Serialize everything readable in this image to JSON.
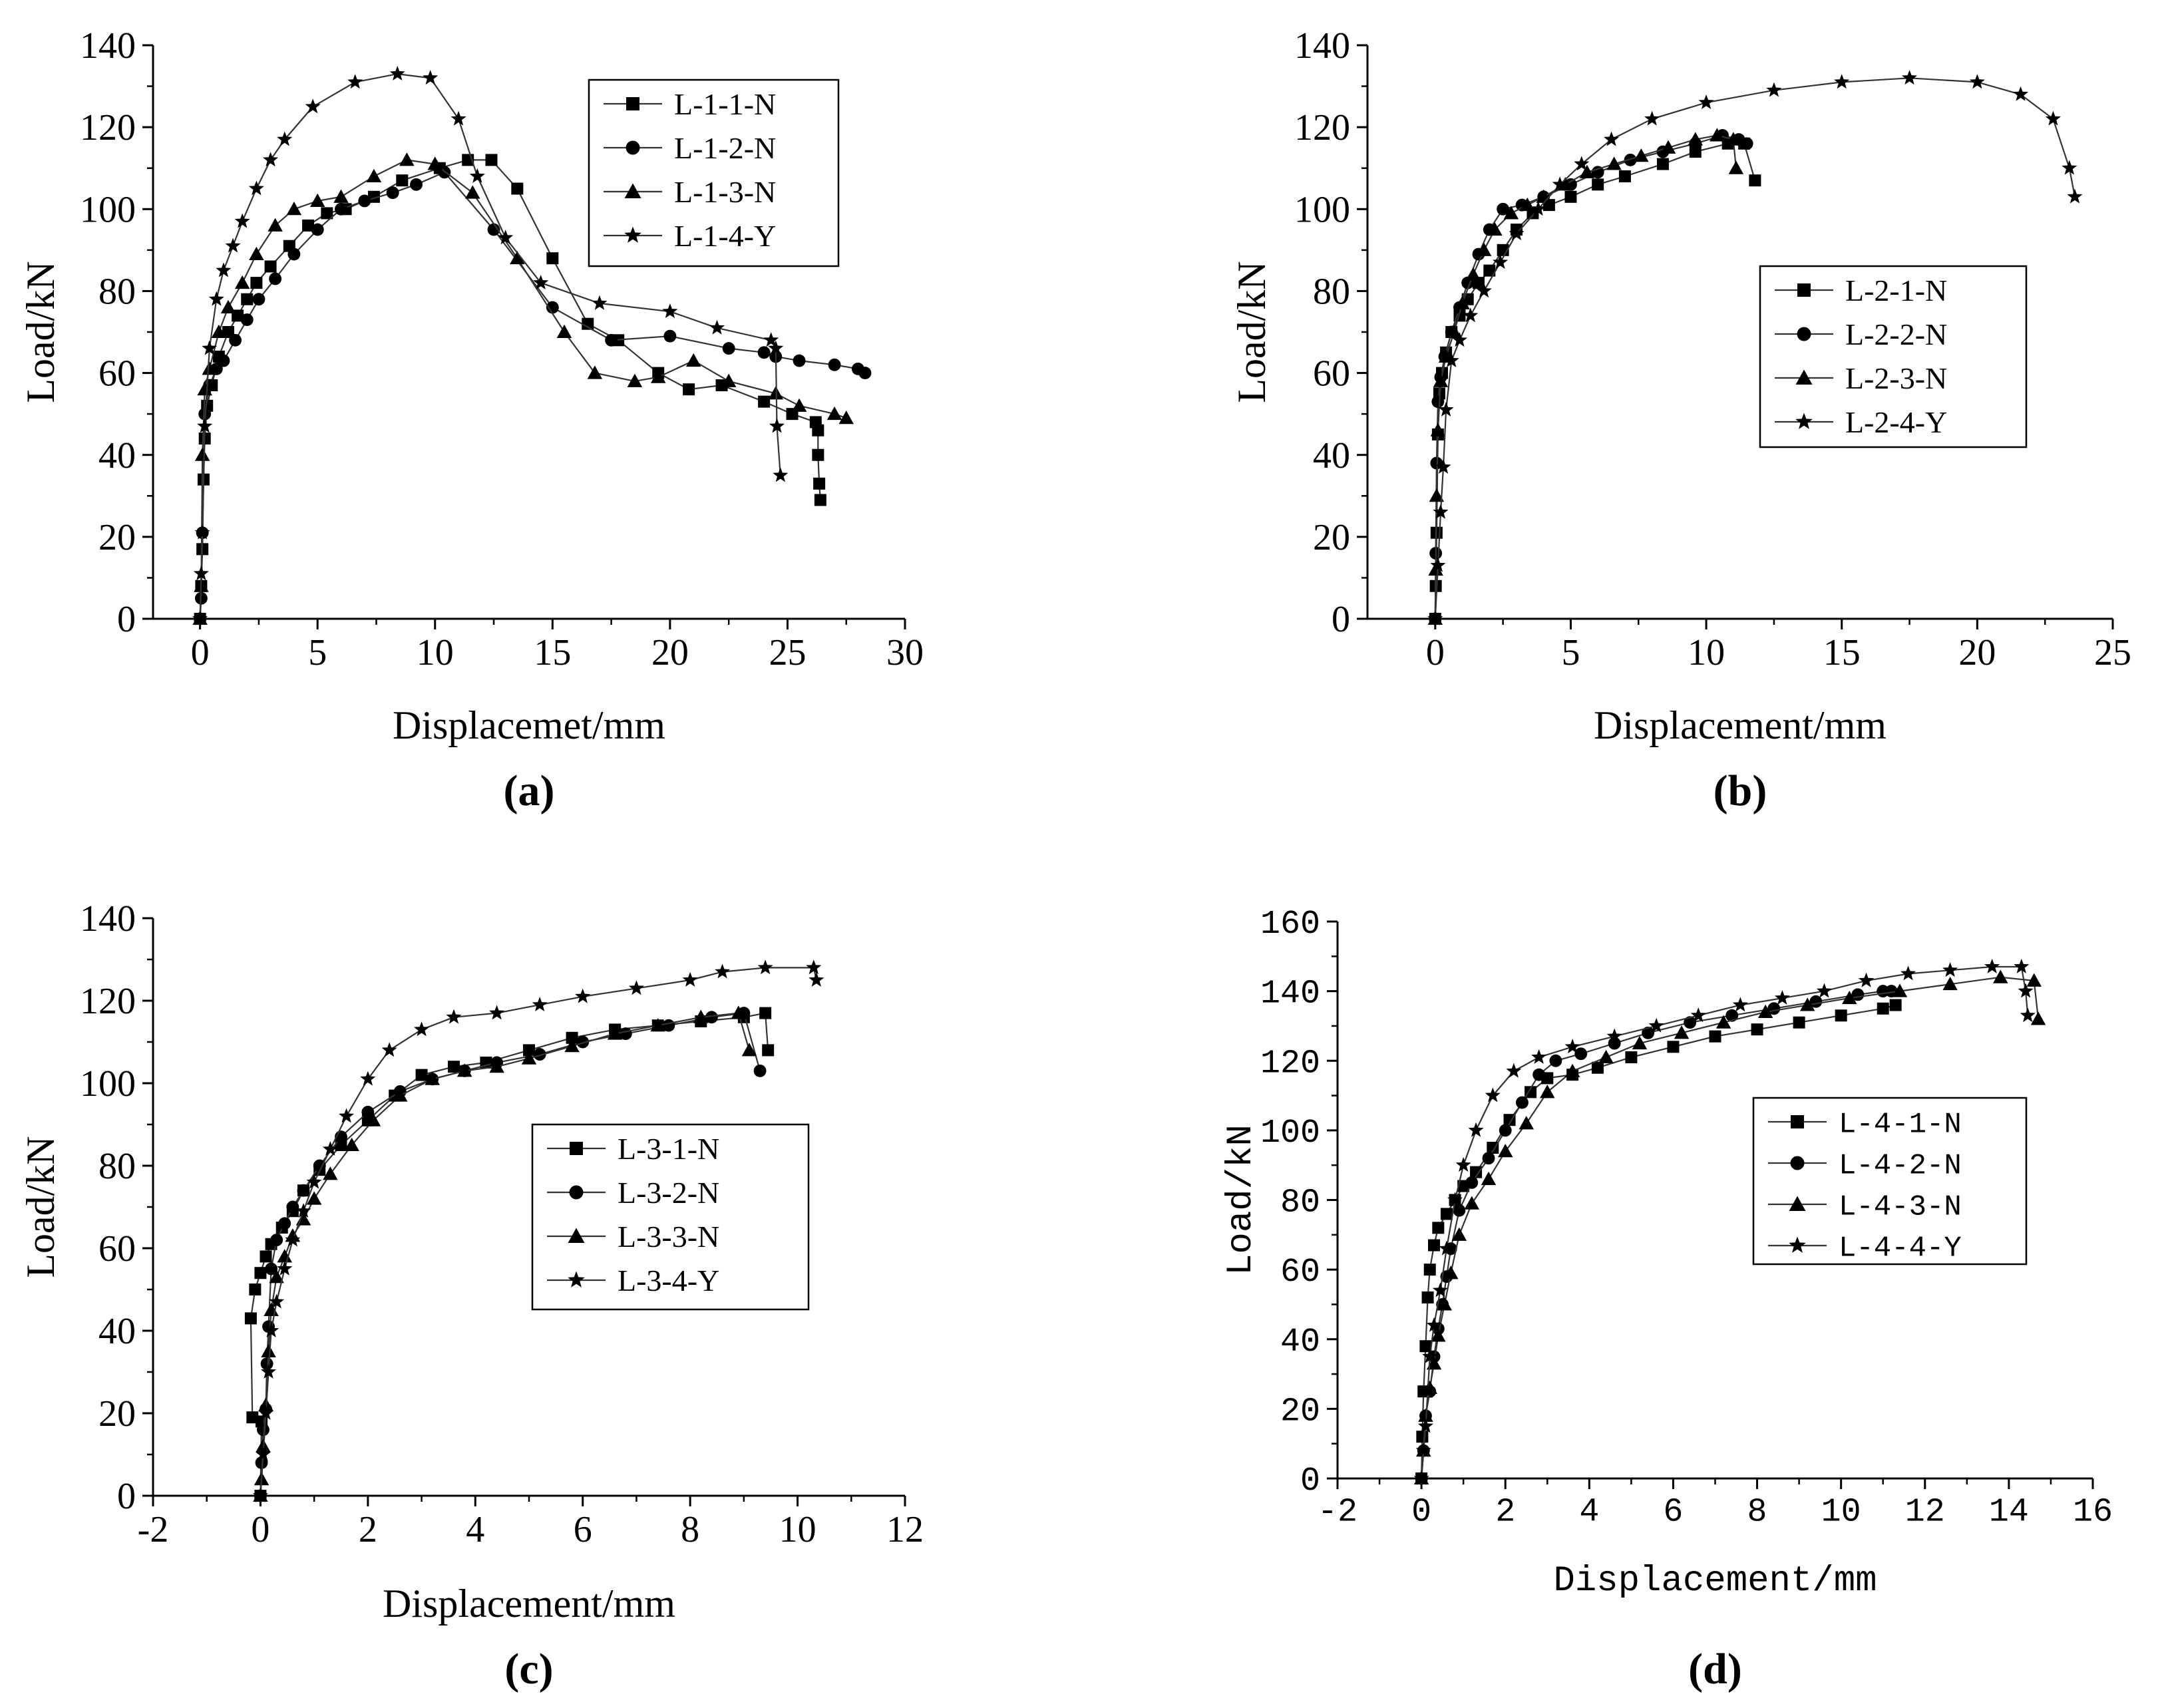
{
  "charts": [
    {
      "id": "a",
      "panel_label": "(a)",
      "type": "line",
      "xlabel": "Displacemet/mm",
      "ylabel": "Load/kN",
      "xlim": [
        -2,
        30
      ],
      "ylim": [
        0,
        140
      ],
      "xticks": [
        "0",
        "5",
        "10",
        "15",
        "20",
        "25",
        "30"
      ],
      "yticks": [
        "0",
        "20",
        "40",
        "60",
        "80",
        "100",
        "120",
        "140"
      ],
      "legend_position": "top-right",
      "series": [
        {
          "name": "L-1-1-N",
          "marker": "square",
          "x": [
            0,
            0.05,
            0.1,
            0.15,
            0.2,
            0.3,
            0.5,
            0.8,
            1.2,
            1.6,
            2.0,
            2.4,
            3.0,
            3.8,
            4.6,
            5.4,
            6.2,
            7.4,
            8.6,
            10.2,
            11.4,
            12.4,
            13.5,
            15.0,
            16.5,
            17.8,
            19.5,
            20.8,
            22.2,
            24.0,
            25.2,
            26.2,
            26.3,
            26.3,
            26.35,
            26.4
          ],
          "y": [
            0,
            8,
            17,
            34,
            44,
            52,
            57,
            64,
            70,
            74,
            78,
            82,
            86,
            91,
            96,
            99,
            100,
            103,
            107,
            110,
            112,
            112,
            105,
            88,
            72,
            68,
            60,
            56,
            57,
            53,
            50,
            48,
            46,
            40,
            33,
            29
          ]
        },
        {
          "name": "L-1-2-N",
          "marker": "circle",
          "x": [
            0,
            0.05,
            0.1,
            0.2,
            0.4,
            0.7,
            1.0,
            1.5,
            2.0,
            2.5,
            3.2,
            4.0,
            5.0,
            6.0,
            7.0,
            8.2,
            9.2,
            10.4,
            12.5,
            15.0,
            17.5,
            20.0,
            22.5,
            24.0,
            24.5,
            25.5,
            27.0,
            28.0,
            28.3
          ],
          "y": [
            0,
            5,
            21,
            50,
            57,
            61,
            63,
            68,
            73,
            78,
            83,
            89,
            95,
            100,
            102,
            104,
            106,
            109,
            95,
            76,
            68,
            69,
            66,
            65,
            64,
            63,
            62,
            61,
            60
          ]
        },
        {
          "name": "L-1-3-N",
          "marker": "triangle",
          "x": [
            0,
            0.05,
            0.1,
            0.2,
            0.4,
            0.8,
            1.2,
            1.8,
            2.4,
            3.2,
            4.0,
            5.0,
            6.0,
            7.4,
            8.8,
            10.0,
            11.6,
            13.5,
            15.5,
            16.8,
            18.5,
            19.5,
            21.0,
            22.5,
            24.5,
            25.5,
            27.0,
            27.5
          ],
          "y": [
            0,
            8,
            40,
            56,
            61,
            70,
            76,
            82,
            89,
            96,
            100,
            102,
            103,
            108,
            112,
            111,
            104,
            88,
            70,
            60,
            58,
            59,
            63,
            58,
            55,
            52,
            50,
            49
          ]
        },
        {
          "name": "L-1-4-Y",
          "marker": "star",
          "x": [
            0,
            0.05,
            0.1,
            0.2,
            0.4,
            0.7,
            1.0,
            1.4,
            1.8,
            2.4,
            3.0,
            3.6,
            4.8,
            6.6,
            8.4,
            9.8,
            11.0,
            11.8,
            13.0,
            14.5,
            17.0,
            20.0,
            22.0,
            24.3,
            24.5,
            24.55,
            24.7
          ],
          "y": [
            0,
            11,
            21,
            47,
            66,
            78,
            85,
            91,
            97,
            105,
            112,
            117,
            125,
            131,
            133,
            132,
            122,
            108,
            93,
            82,
            77,
            75,
            71,
            68,
            66,
            47,
            35
          ]
        }
      ]
    },
    {
      "id": "b",
      "panel_label": "(b)",
      "type": "line",
      "xlabel": "Displacement/mm",
      "ylabel": "Load/kN",
      "xlim": [
        -2.5,
        25
      ],
      "ylim": [
        0,
        140
      ],
      "xticks": [
        "0",
        "5",
        "10",
        "15",
        "20",
        "25"
      ],
      "yticks": [
        "0",
        "20",
        "40",
        "60",
        "80",
        "100",
        "120",
        "140"
      ],
      "legend_position": "center-right",
      "series": [
        {
          "name": "L-2-1-N",
          "marker": "square",
          "x": [
            0,
            0.02,
            0.05,
            0.1,
            0.15,
            0.25,
            0.4,
            0.6,
            0.9,
            1.2,
            1.6,
            2.0,
            2.5,
            3.0,
            3.6,
            4.2,
            5.0,
            6.0,
            7.0,
            8.4,
            9.6,
            10.8,
            11.4,
            11.8
          ],
          "y": [
            0,
            8,
            21,
            45,
            55,
            60,
            65,
            70,
            74,
            78,
            82,
            85,
            90,
            95,
            99,
            101,
            103,
            106,
            108,
            111,
            114,
            116,
            116,
            107
          ]
        },
        {
          "name": "L-2-2-N",
          "marker": "circle",
          "x": [
            0,
            0.02,
            0.05,
            0.1,
            0.2,
            0.35,
            0.6,
            0.9,
            1.2,
            1.6,
            2.0,
            2.5,
            3.2,
            4.0,
            5.0,
            6.0,
            7.2,
            8.4,
            9.6,
            10.6,
            11.2,
            11.5
          ],
          "y": [
            0,
            16,
            38,
            53,
            59,
            64,
            70,
            76,
            82,
            89,
            95,
            100,
            101,
            103,
            106,
            109,
            112,
            114,
            116,
            118,
            117,
            116
          ]
        },
        {
          "name": "L-2-3-N",
          "marker": "triangle",
          "x": [
            0,
            0.02,
            0.05,
            0.1,
            0.2,
            0.4,
            0.7,
            1.0,
            1.4,
            1.8,
            2.2,
            2.8,
            3.4,
            4.0,
            4.8,
            5.6,
            6.6,
            7.6,
            8.6,
            9.6,
            10.4,
            11.0,
            11.1
          ],
          "y": [
            0,
            12,
            30,
            46,
            58,
            64,
            70,
            77,
            84,
            90,
            95,
            99,
            101,
            103,
            106,
            109,
            111,
            113,
            115,
            117,
            118,
            117,
            110
          ]
        },
        {
          "name": "L-2-4-Y",
          "marker": "star",
          "x": [
            0,
            0.1,
            0.2,
            0.3,
            0.4,
            0.6,
            0.9,
            1.3,
            1.8,
            2.4,
            3.0,
            3.8,
            4.6,
            5.4,
            6.5,
            8.0,
            10.0,
            12.5,
            15.0,
            17.5,
            20.0,
            21.6,
            22.8,
            23.4,
            23.6
          ],
          "y": [
            0,
            13,
            26,
            37,
            51,
            63,
            68,
            74,
            80,
            87,
            94,
            100,
            106,
            111,
            117,
            122,
            126,
            129,
            131,
            132,
            131,
            128,
            122,
            110,
            103
          ]
        }
      ]
    },
    {
      "id": "c",
      "panel_label": "(c)",
      "type": "line",
      "xlabel": "Displacement/mm",
      "ylabel": "Load/kN",
      "xlim": [
        -2,
        12
      ],
      "ylim": [
        0,
        140
      ],
      "xticks": [
        "-2",
        "0",
        "2",
        "4",
        "6",
        "8",
        "10",
        "12"
      ],
      "yticks": [
        "0",
        "20",
        "40",
        "60",
        "80",
        "100",
        "120",
        "140"
      ],
      "legend_position": "center-right",
      "series": [
        {
          "name": "L-3-1-N",
          "marker": "square",
          "x": [
            0,
            0.02,
            -0.15,
            -0.18,
            -0.1,
            0.0,
            0.1,
            0.2,
            0.4,
            0.6,
            0.8,
            1.1,
            1.5,
            2.0,
            2.5,
            3.0,
            3.6,
            4.2,
            5.0,
            5.8,
            6.6,
            7.4,
            8.2,
            9.0,
            9.4,
            9.45
          ],
          "y": [
            0,
            18,
            19,
            43,
            50,
            54,
            58,
            61,
            65,
            69,
            74,
            79,
            85,
            91,
            97,
            102,
            104,
            105,
            108,
            111,
            113,
            114,
            115,
            116,
            117,
            108
          ]
        },
        {
          "name": "L-3-2-N",
          "marker": "circle",
          "x": [
            0,
            0.02,
            0.05,
            0.1,
            0.12,
            0.15,
            0.2,
            0.3,
            0.45,
            0.6,
            0.8,
            1.1,
            1.5,
            2.0,
            2.6,
            3.2,
            3.8,
            4.4,
            5.2,
            6.0,
            6.8,
            7.6,
            8.4,
            9.0,
            9.3
          ],
          "y": [
            0,
            8,
            16,
            21,
            32,
            41,
            55,
            62,
            66,
            70,
            74,
            80,
            87,
            93,
            98,
            101,
            103,
            105,
            107,
            110,
            112,
            114,
            116,
            117,
            103
          ]
        },
        {
          "name": "L-3-3-N",
          "marker": "triangle",
          "x": [
            0,
            0.02,
            0.05,
            0.1,
            0.15,
            0.2,
            0.3,
            0.45,
            0.6,
            0.8,
            1.0,
            1.3,
            1.7,
            2.1,
            2.6,
            3.2,
            3.8,
            4.4,
            5.0,
            5.8,
            6.6,
            7.4,
            8.2,
            8.9,
            9.1
          ],
          "y": [
            0,
            4,
            12,
            22,
            35,
            45,
            53,
            58,
            63,
            67,
            72,
            78,
            85,
            91,
            97,
            101,
            103,
            104,
            106,
            109,
            112,
            114,
            116,
            117,
            108
          ]
        },
        {
          "name": "L-3-4-Y",
          "marker": "star",
          "x": [
            0,
            0.05,
            0.1,
            0.15,
            0.2,
            0.3,
            0.45,
            0.6,
            0.8,
            1.0,
            1.3,
            1.6,
            2.0,
            2.4,
            3.0,
            3.6,
            4.4,
            5.2,
            6.0,
            7.0,
            8.0,
            8.6,
            9.4,
            10.3,
            10.35
          ],
          "y": [
            0,
            10,
            20,
            30,
            40,
            47,
            55,
            62,
            69,
            76,
            84,
            92,
            101,
            108,
            113,
            116,
            117,
            119,
            121,
            123,
            125,
            127,
            128,
            128,
            125
          ]
        }
      ]
    },
    {
      "id": "d",
      "panel_label": "(d)",
      "type": "line",
      "xlabel": "Displacement/mm",
      "ylabel": "Load/kN",
      "xlim": [
        -2,
        16
      ],
      "ylim": [
        0,
        160
      ],
      "xticks": [
        "-2",
        "0",
        "2",
        "4",
        "6",
        "8",
        "10",
        "12",
        "14",
        "16"
      ],
      "yticks": [
        "0",
        "20",
        "40",
        "60",
        "80",
        "100",
        "120",
        "140",
        "160"
      ],
      "legend_position": "center-right",
      "series": [
        {
          "name": "L-4-1-N",
          "marker": "square",
          "x": [
            0,
            0.02,
            0.05,
            0.1,
            0.15,
            0.2,
            0.3,
            0.4,
            0.6,
            0.8,
            1.0,
            1.3,
            1.7,
            2.1,
            2.6,
            3.0,
            3.6,
            4.2,
            5.0,
            6.0,
            7.0,
            8.0,
            9.0,
            10.0,
            11.0,
            11.3
          ],
          "y": [
            0,
            12,
            25,
            38,
            52,
            60,
            67,
            72,
            76,
            80,
            84,
            88,
            95,
            103,
            111,
            115,
            116,
            118,
            121,
            124,
            127,
            129,
            131,
            133,
            135,
            136
          ]
        },
        {
          "name": "L-4-2-N",
          "marker": "circle",
          "x": [
            0,
            0.05,
            0.1,
            0.2,
            0.3,
            0.4,
            0.5,
            0.6,
            0.7,
            0.9,
            1.2,
            1.6,
            2.0,
            2.4,
            2.8,
            3.2,
            3.8,
            4.6,
            5.4,
            6.4,
            7.4,
            8.4,
            9.4,
            10.4,
            11.0,
            11.2
          ],
          "y": [
            0,
            8,
            18,
            25,
            35,
            43,
            50,
            58,
            66,
            77,
            85,
            92,
            100,
            108,
            116,
            120,
            122,
            125,
            128,
            131,
            133,
            135,
            137,
            139,
            140,
            140
          ]
        },
        {
          "name": "L-4-3-N",
          "marker": "triangle",
          "x": [
            0,
            0.05,
            0.1,
            0.2,
            0.3,
            0.4,
            0.55,
            0.7,
            0.9,
            1.2,
            1.6,
            2.0,
            2.5,
            3.0,
            3.6,
            4.4,
            5.2,
            6.2,
            7.2,
            8.2,
            9.2,
            10.2,
            11.4,
            12.6,
            13.8,
            14.6,
            14.7
          ],
          "y": [
            0,
            8,
            18,
            26,
            33,
            41,
            50,
            59,
            70,
            79,
            86,
            94,
            102,
            111,
            117,
            121,
            125,
            128,
            131,
            134,
            136,
            138,
            140,
            142,
            144,
            143,
            132
          ]
        },
        {
          "name": "L-4-4-Y",
          "marker": "star",
          "x": [
            0,
            0.05,
            0.1,
            0.15,
            0.2,
            0.3,
            0.45,
            0.6,
            0.8,
            1.0,
            1.3,
            1.7,
            2.2,
            2.8,
            3.6,
            4.6,
            5.6,
            6.6,
            7.6,
            8.6,
            9.6,
            10.6,
            11.6,
            12.6,
            13.6,
            14.3,
            14.4,
            14.45
          ],
          "y": [
            0,
            8,
            15,
            25,
            35,
            44,
            54,
            66,
            80,
            90,
            100,
            110,
            117,
            121,
            124,
            127,
            130,
            133,
            136,
            138,
            140,
            143,
            145,
            146,
            147,
            147,
            140,
            133
          ]
        }
      ]
    }
  ]
}
